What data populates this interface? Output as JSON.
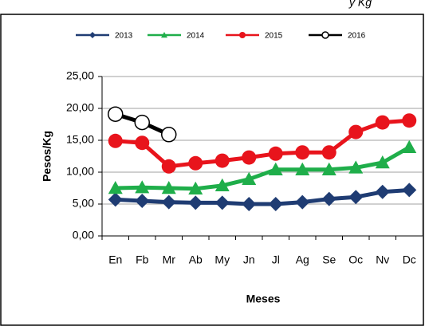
{
  "chart_data": {
    "type": "line",
    "title": "y Kg",
    "x_label": "Meses",
    "y_label": "Pesos/Kg",
    "categories": [
      "En",
      "Fb",
      "Mr",
      "Ab",
      "My",
      "Jn",
      "Jl",
      "Ag",
      "Se",
      "Oc",
      "Nv",
      "Dc"
    ],
    "series": [
      {
        "name": "2013",
        "color": "#1f3c73",
        "marker": "diamond",
        "values": [
          5.7,
          5.5,
          5.3,
          5.2,
          5.2,
          5.0,
          5.0,
          5.3,
          5.8,
          6.1,
          6.9,
          7.2
        ]
      },
      {
        "name": "2014",
        "color": "#1fae4a",
        "marker": "triangle",
        "values": [
          7.5,
          7.6,
          7.5,
          7.4,
          7.9,
          8.9,
          10.4,
          10.4,
          10.4,
          10.7,
          11.5,
          13.9
        ]
      },
      {
        "name": "2015",
        "color": "#e8141c",
        "marker": "circle",
        "values": [
          14.9,
          14.6,
          10.9,
          11.4,
          11.8,
          12.3,
          12.9,
          13.1,
          13.1,
          16.3,
          17.8,
          18.1
        ]
      },
      {
        "name": "2016",
        "color": "#000000",
        "marker": "open-circle",
        "values": [
          19.1,
          17.8,
          15.9,
          null,
          null,
          null,
          null,
          null,
          null,
          null,
          null,
          null
        ]
      }
    ],
    "ylim": [
      0,
      25
    ],
    "yticks": [
      {
        "value": 0,
        "label": "0,00"
      },
      {
        "value": 5,
        "label": "5,00"
      },
      {
        "value": 10,
        "label": "10,00"
      },
      {
        "value": 15,
        "label": "15,00"
      },
      {
        "value": 20,
        "label": "20,00"
      },
      {
        "value": 25,
        "label": "25,00"
      }
    ],
    "grid": true
  }
}
